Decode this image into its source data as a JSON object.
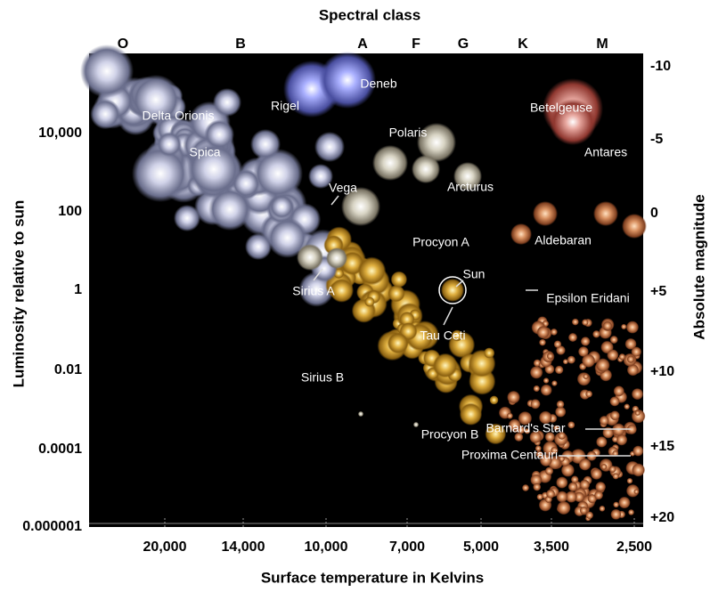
{
  "title": "Spectral class",
  "spectral_classes": [
    "O",
    "B",
    "A",
    "F",
    "G",
    "K",
    "M"
  ],
  "left_axis": {
    "label": "Luminosity relative to sun",
    "ticks": [
      "10,000",
      "100",
      "1",
      "0.01",
      "0.0001",
      "0.000001"
    ]
  },
  "right_axis": {
    "label": "Absolute magnitude",
    "ticks": [
      "-10",
      "-5",
      "0",
      "+5",
      "+10",
      "+15",
      "+20"
    ]
  },
  "bottom_axis": {
    "label": "Surface temperature in Kelvins",
    "ticks": [
      "20,000",
      "14,000",
      "10,000",
      "7,000",
      "5,000",
      "3,500",
      "2,500"
    ]
  },
  "stars": [
    "Deneb",
    "Rigel",
    "Delta Orionis",
    "Spica",
    "Polaris",
    "Betelgeuse",
    "Antares",
    "Vega",
    "Arcturus",
    "Procyon A",
    "Aldebaran",
    "Sun",
    "Sirius A",
    "Epsilon Eridani",
    "Tau Ceti",
    "Sirius B",
    "Procyon B",
    "Barnard's Star",
    "Proxima Centauri"
  ]
}
